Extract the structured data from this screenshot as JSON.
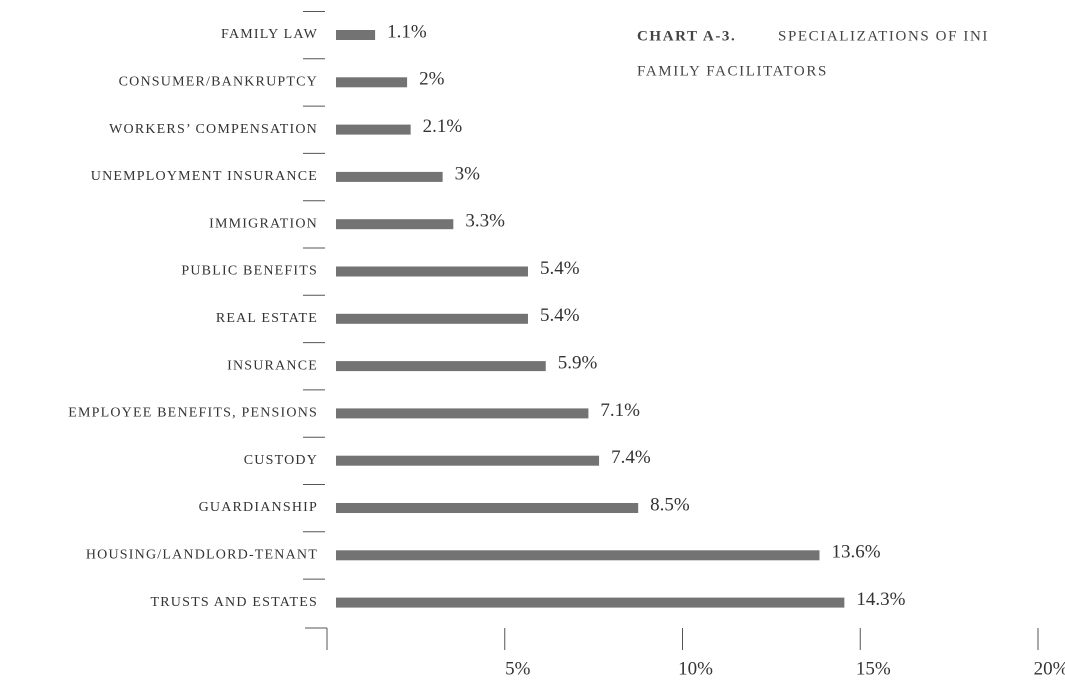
{
  "chart_data": {
    "type": "hbar",
    "title_prefix": "CHART A-3.",
    "title": [
      "SPECIALIZATIONS OF INI",
      "FAMILY FACILITATORS"
    ],
    "categories": [
      "FAMILY LAW",
      "CONSUMER/BANKRUPTCY",
      "WORKERS’ COMPENSATION",
      "UNEMPLOYMENT INSURANCE",
      "IMMIGRATION",
      "PUBLIC BENEFITS",
      "REAL ESTATE",
      "INSURANCE",
      "EMPLOYEE BENEFITS, PENSIONS",
      "CUSTODY",
      "GUARDIANSHIP",
      "HOUSING/LANDLORD-TENANT",
      "TRUSTS AND ESTATES"
    ],
    "values": [
      1.1,
      2,
      2.1,
      3,
      3.3,
      5.4,
      5.4,
      5.9,
      7.1,
      7.4,
      8.5,
      13.6,
      14.3
    ],
    "value_labels": [
      "1.1%",
      "2%",
      "2.1%",
      "3%",
      "3.3%",
      "5.4%",
      "5.4%",
      "5.9%",
      "7.1%",
      "7.4%",
      "8.5%",
      "13.6%",
      "14.3%"
    ],
    "color": "#737373",
    "xlim": [
      0,
      20
    ],
    "xticks": [
      {
        "value": 5,
        "label": "5%"
      },
      {
        "value": 10,
        "label": "10%"
      },
      {
        "value": 15,
        "label": "15%"
      },
      {
        "value": 20,
        "label": "20%"
      }
    ]
  }
}
